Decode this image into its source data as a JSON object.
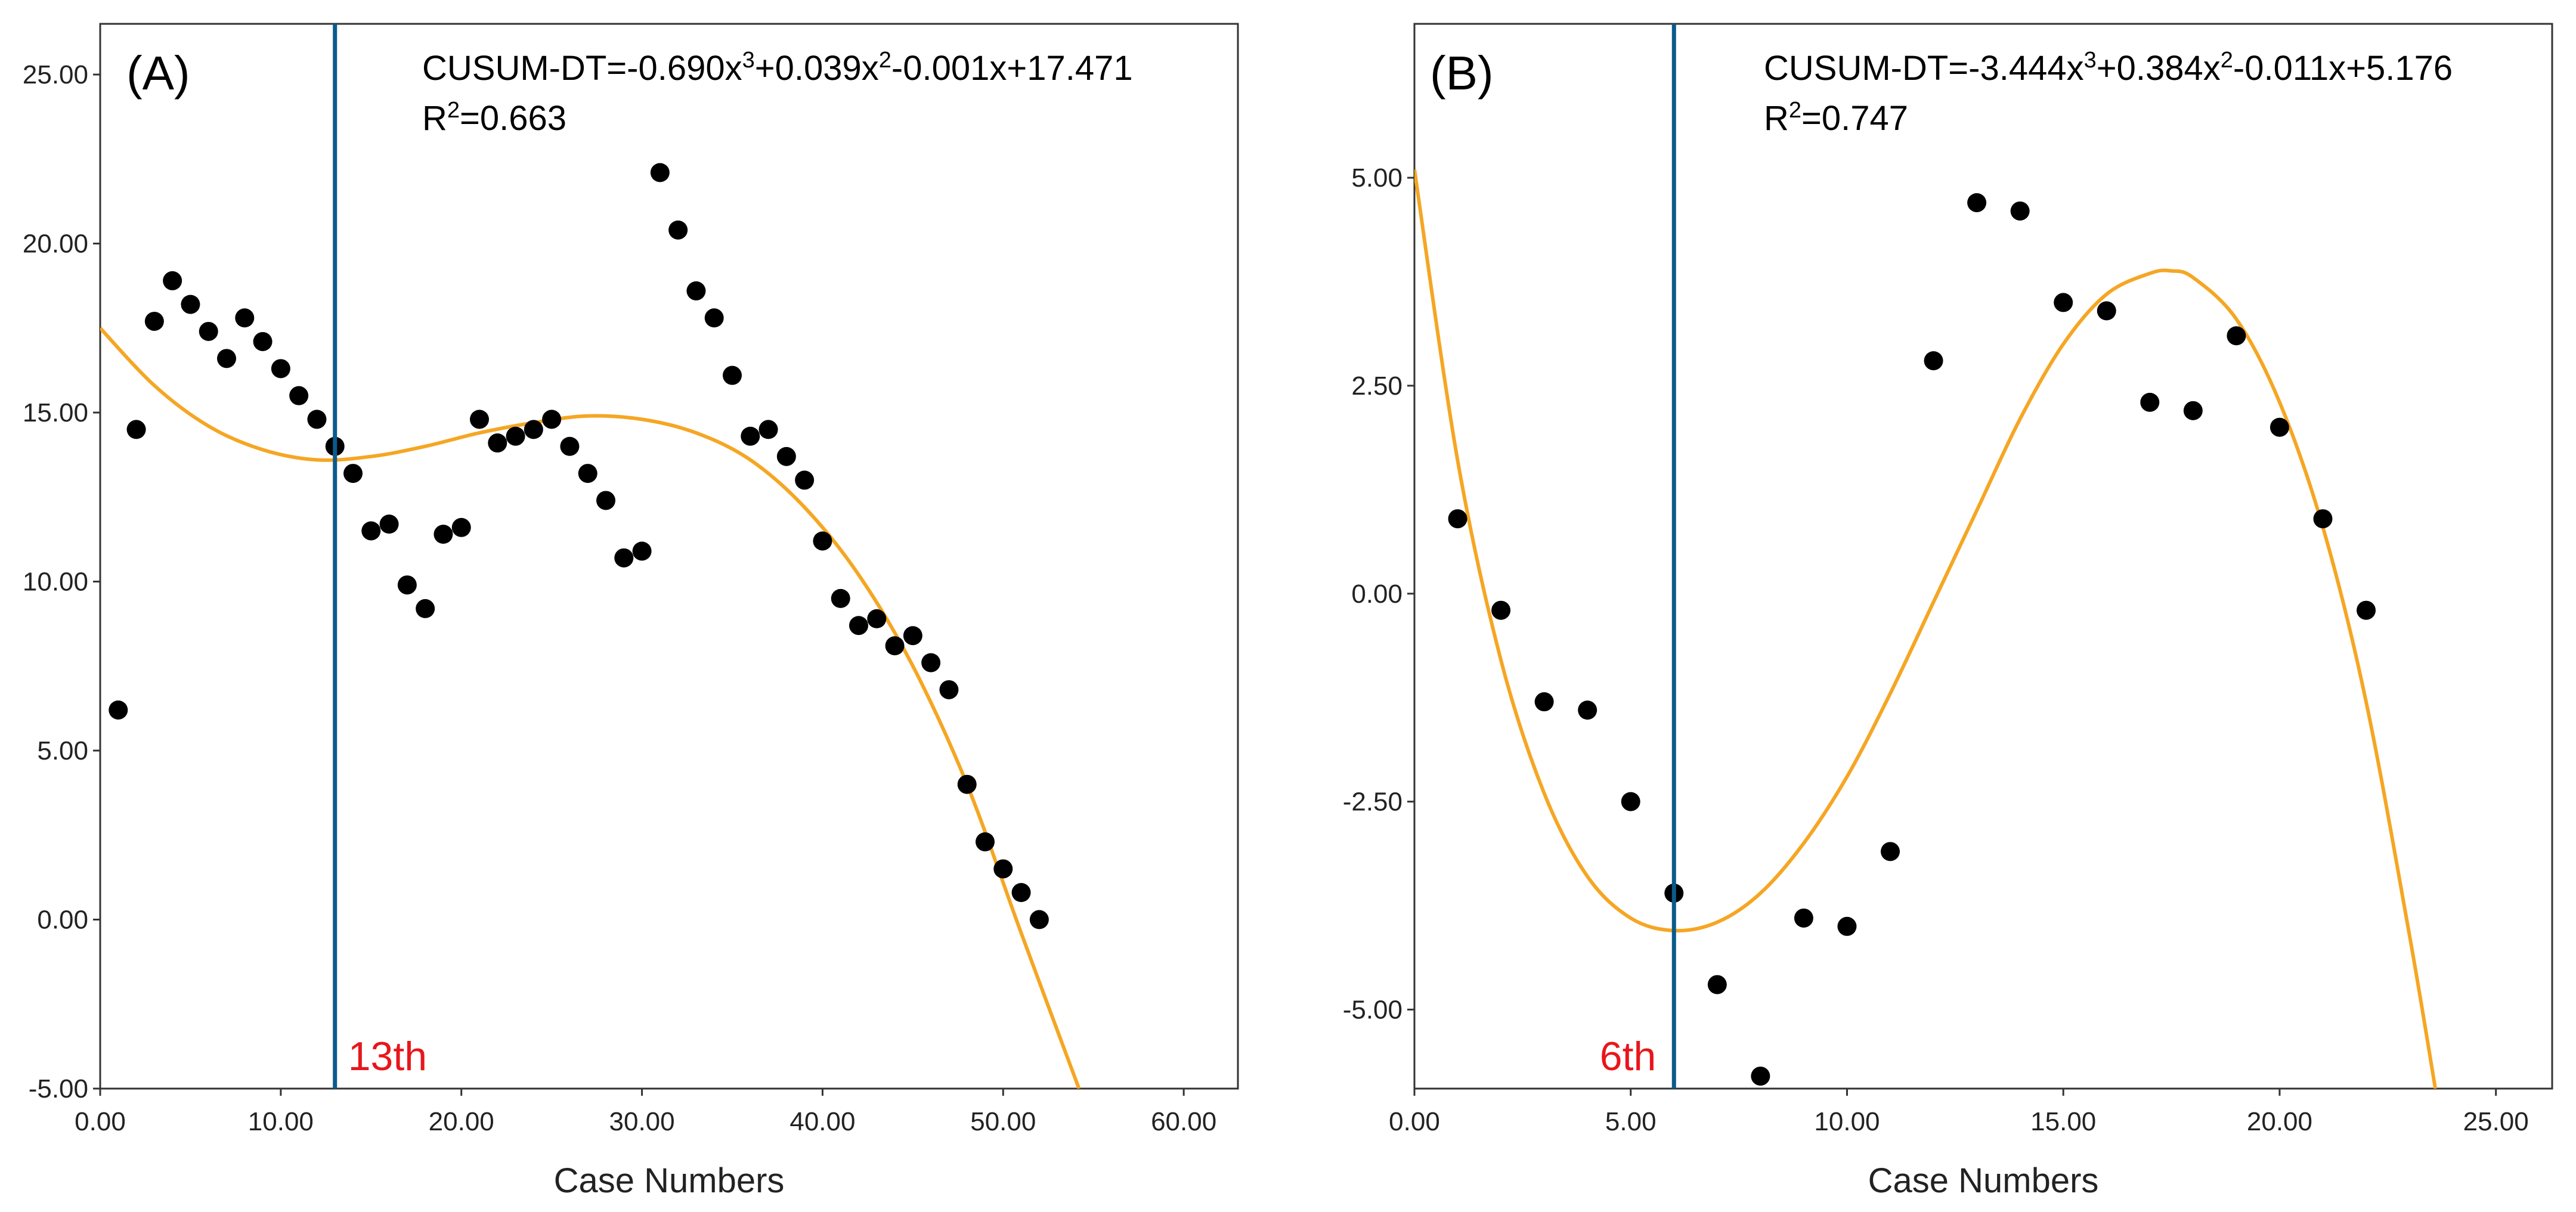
{
  "colors": {
    "points": "#000000",
    "fit_curve": "#F5A623",
    "cutoff_line": "#0B5A8C",
    "cutoff_label": "#E8161B",
    "frame": "#333333"
  },
  "chart_data": [
    {
      "type": "scatter",
      "panel_label": "(A)",
      "equation": {
        "lhs": "CUSUM-DT=-0.690x",
        "exp1": "3",
        "mid1": "+0.039x",
        "exp2": "2",
        "rest": "-0.001x+17.471"
      },
      "r_squared": {
        "base": "R",
        "sup": "2",
        "value": "=0.663"
      },
      "xlabel": "Case Numbers",
      "ylabel": "",
      "xlim": [
        0,
        63
      ],
      "ylim": [
        -5,
        26.5
      ],
      "xticks": [
        0,
        10,
        20,
        30,
        40,
        50,
        60
      ],
      "xtick_labels": [
        "0.00",
        "10.00",
        "20.00",
        "30.00",
        "40.00",
        "50.00",
        "60.00"
      ],
      "yticks": [
        -5,
        0,
        5,
        10,
        15,
        20,
        25
      ],
      "ytick_labels": [
        "-5.00",
        "0.00",
        "5.00",
        "10.00",
        "15.00",
        "20.00",
        "25.00"
      ],
      "cutoff": {
        "x": 13,
        "label": "13th"
      },
      "points": [
        [
          1,
          6.2
        ],
        [
          2,
          14.5
        ],
        [
          3,
          17.7
        ],
        [
          4,
          18.9
        ],
        [
          5,
          18.2
        ],
        [
          6,
          17.4
        ],
        [
          7,
          16.6
        ],
        [
          8,
          17.8
        ],
        [
          9,
          17.1
        ],
        [
          10,
          16.3
        ],
        [
          11,
          15.5
        ],
        [
          12,
          14.8
        ],
        [
          13,
          14.0
        ],
        [
          14,
          13.2
        ],
        [
          15,
          11.5
        ],
        [
          16,
          11.7
        ],
        [
          17,
          9.9
        ],
        [
          18,
          9.2
        ],
        [
          19,
          11.4
        ],
        [
          20,
          11.6
        ],
        [
          21,
          14.8
        ],
        [
          22,
          14.1
        ],
        [
          23,
          14.3
        ],
        [
          24,
          14.5
        ],
        [
          25,
          14.8
        ],
        [
          26,
          14.0
        ],
        [
          27,
          13.2
        ],
        [
          28,
          12.4
        ],
        [
          29,
          10.7
        ],
        [
          30,
          10.9
        ],
        [
          31,
          22.1
        ],
        [
          32,
          20.4
        ],
        [
          33,
          18.6
        ],
        [
          34,
          17.8
        ],
        [
          35,
          16.1
        ],
        [
          36,
          14.3
        ],
        [
          37,
          14.5
        ],
        [
          38,
          13.7
        ],
        [
          39,
          13.0
        ],
        [
          40,
          11.2
        ],
        [
          41,
          9.5
        ],
        [
          42,
          8.7
        ],
        [
          43,
          8.9
        ],
        [
          44,
          8.1
        ],
        [
          45,
          8.4
        ],
        [
          46,
          7.6
        ],
        [
          47,
          6.8
        ],
        [
          48,
          4.0
        ],
        [
          49,
          2.3
        ],
        [
          50,
          1.5
        ],
        [
          51,
          0.8
        ],
        [
          52,
          0.0
        ]
      ],
      "fit_curve": {
        "x": [
          0,
          3,
          6,
          9,
          12,
          15,
          18,
          21,
          24,
          27,
          30,
          33,
          36,
          39,
          42,
          45,
          48,
          51,
          54.2
        ],
        "y": [
          17.5,
          15.8,
          14.6,
          13.9,
          13.6,
          13.7,
          14.0,
          14.4,
          14.7,
          14.9,
          14.8,
          14.4,
          13.6,
          12.2,
          10.2,
          7.5,
          4.0,
          -0.4,
          -5.0
        ]
      }
    },
    {
      "type": "scatter",
      "panel_label": "(B)",
      "equation": {
        "lhs": "CUSUM-DT=-3.444x",
        "exp1": "3",
        "mid1": "+0.384x",
        "exp2": "2",
        "rest": "-0.011x+5.176"
      },
      "r_squared": {
        "base": "R",
        "sup": "2",
        "value": "=0.747"
      },
      "xlabel": "Case Numbers",
      "ylabel": "",
      "xlim": [
        0,
        26.3
      ],
      "ylim": [
        -5.95,
        6.85
      ],
      "xticks": [
        0,
        5,
        10,
        15,
        20,
        25
      ],
      "xtick_labels": [
        "0.00",
        "5.00",
        "10.00",
        "15.00",
        "20.00",
        "25.00"
      ],
      "yticks": [
        -5,
        -2.5,
        0,
        2.5,
        5
      ],
      "ytick_labels": [
        "-5.00",
        "-2.50",
        "0.00",
        "2.50",
        "5.00"
      ],
      "cutoff": {
        "x": 6,
        "label": "6th"
      },
      "points": [
        [
          1,
          0.9
        ],
        [
          2,
          -0.2
        ],
        [
          3,
          -1.3
        ],
        [
          4,
          -1.4
        ],
        [
          5,
          -2.5
        ],
        [
          6,
          -3.6
        ],
        [
          7,
          -4.7
        ],
        [
          8,
          -5.8
        ],
        [
          9,
          -3.9
        ],
        [
          10,
          -4.0
        ],
        [
          11,
          -3.1
        ],
        [
          12,
          2.8
        ],
        [
          13,
          4.7
        ],
        [
          14,
          4.6
        ],
        [
          15,
          3.5
        ],
        [
          16,
          3.4
        ],
        [
          17,
          2.3
        ],
        [
          18,
          2.2
        ],
        [
          19,
          3.1
        ],
        [
          20,
          2.0
        ],
        [
          21,
          0.9
        ],
        [
          22,
          -0.2
        ]
      ],
      "fit_curve": {
        "x": [
          0,
          1,
          2,
          3,
          4,
          5,
          6,
          7,
          8,
          9,
          10,
          11,
          12,
          13,
          14,
          15,
          16,
          17,
          17.5,
          18,
          19,
          20,
          21,
          22,
          23,
          23.6
        ],
        "y": [
          5.1,
          1.6,
          -0.8,
          -2.4,
          -3.4,
          -3.9,
          -4.05,
          -3.95,
          -3.6,
          -3.0,
          -2.2,
          -1.2,
          -0.1,
          1.0,
          2.1,
          3.0,
          3.6,
          3.85,
          3.88,
          3.8,
          3.3,
          2.3,
          0.8,
          -1.3,
          -4.1,
          -5.95
        ]
      }
    }
  ]
}
